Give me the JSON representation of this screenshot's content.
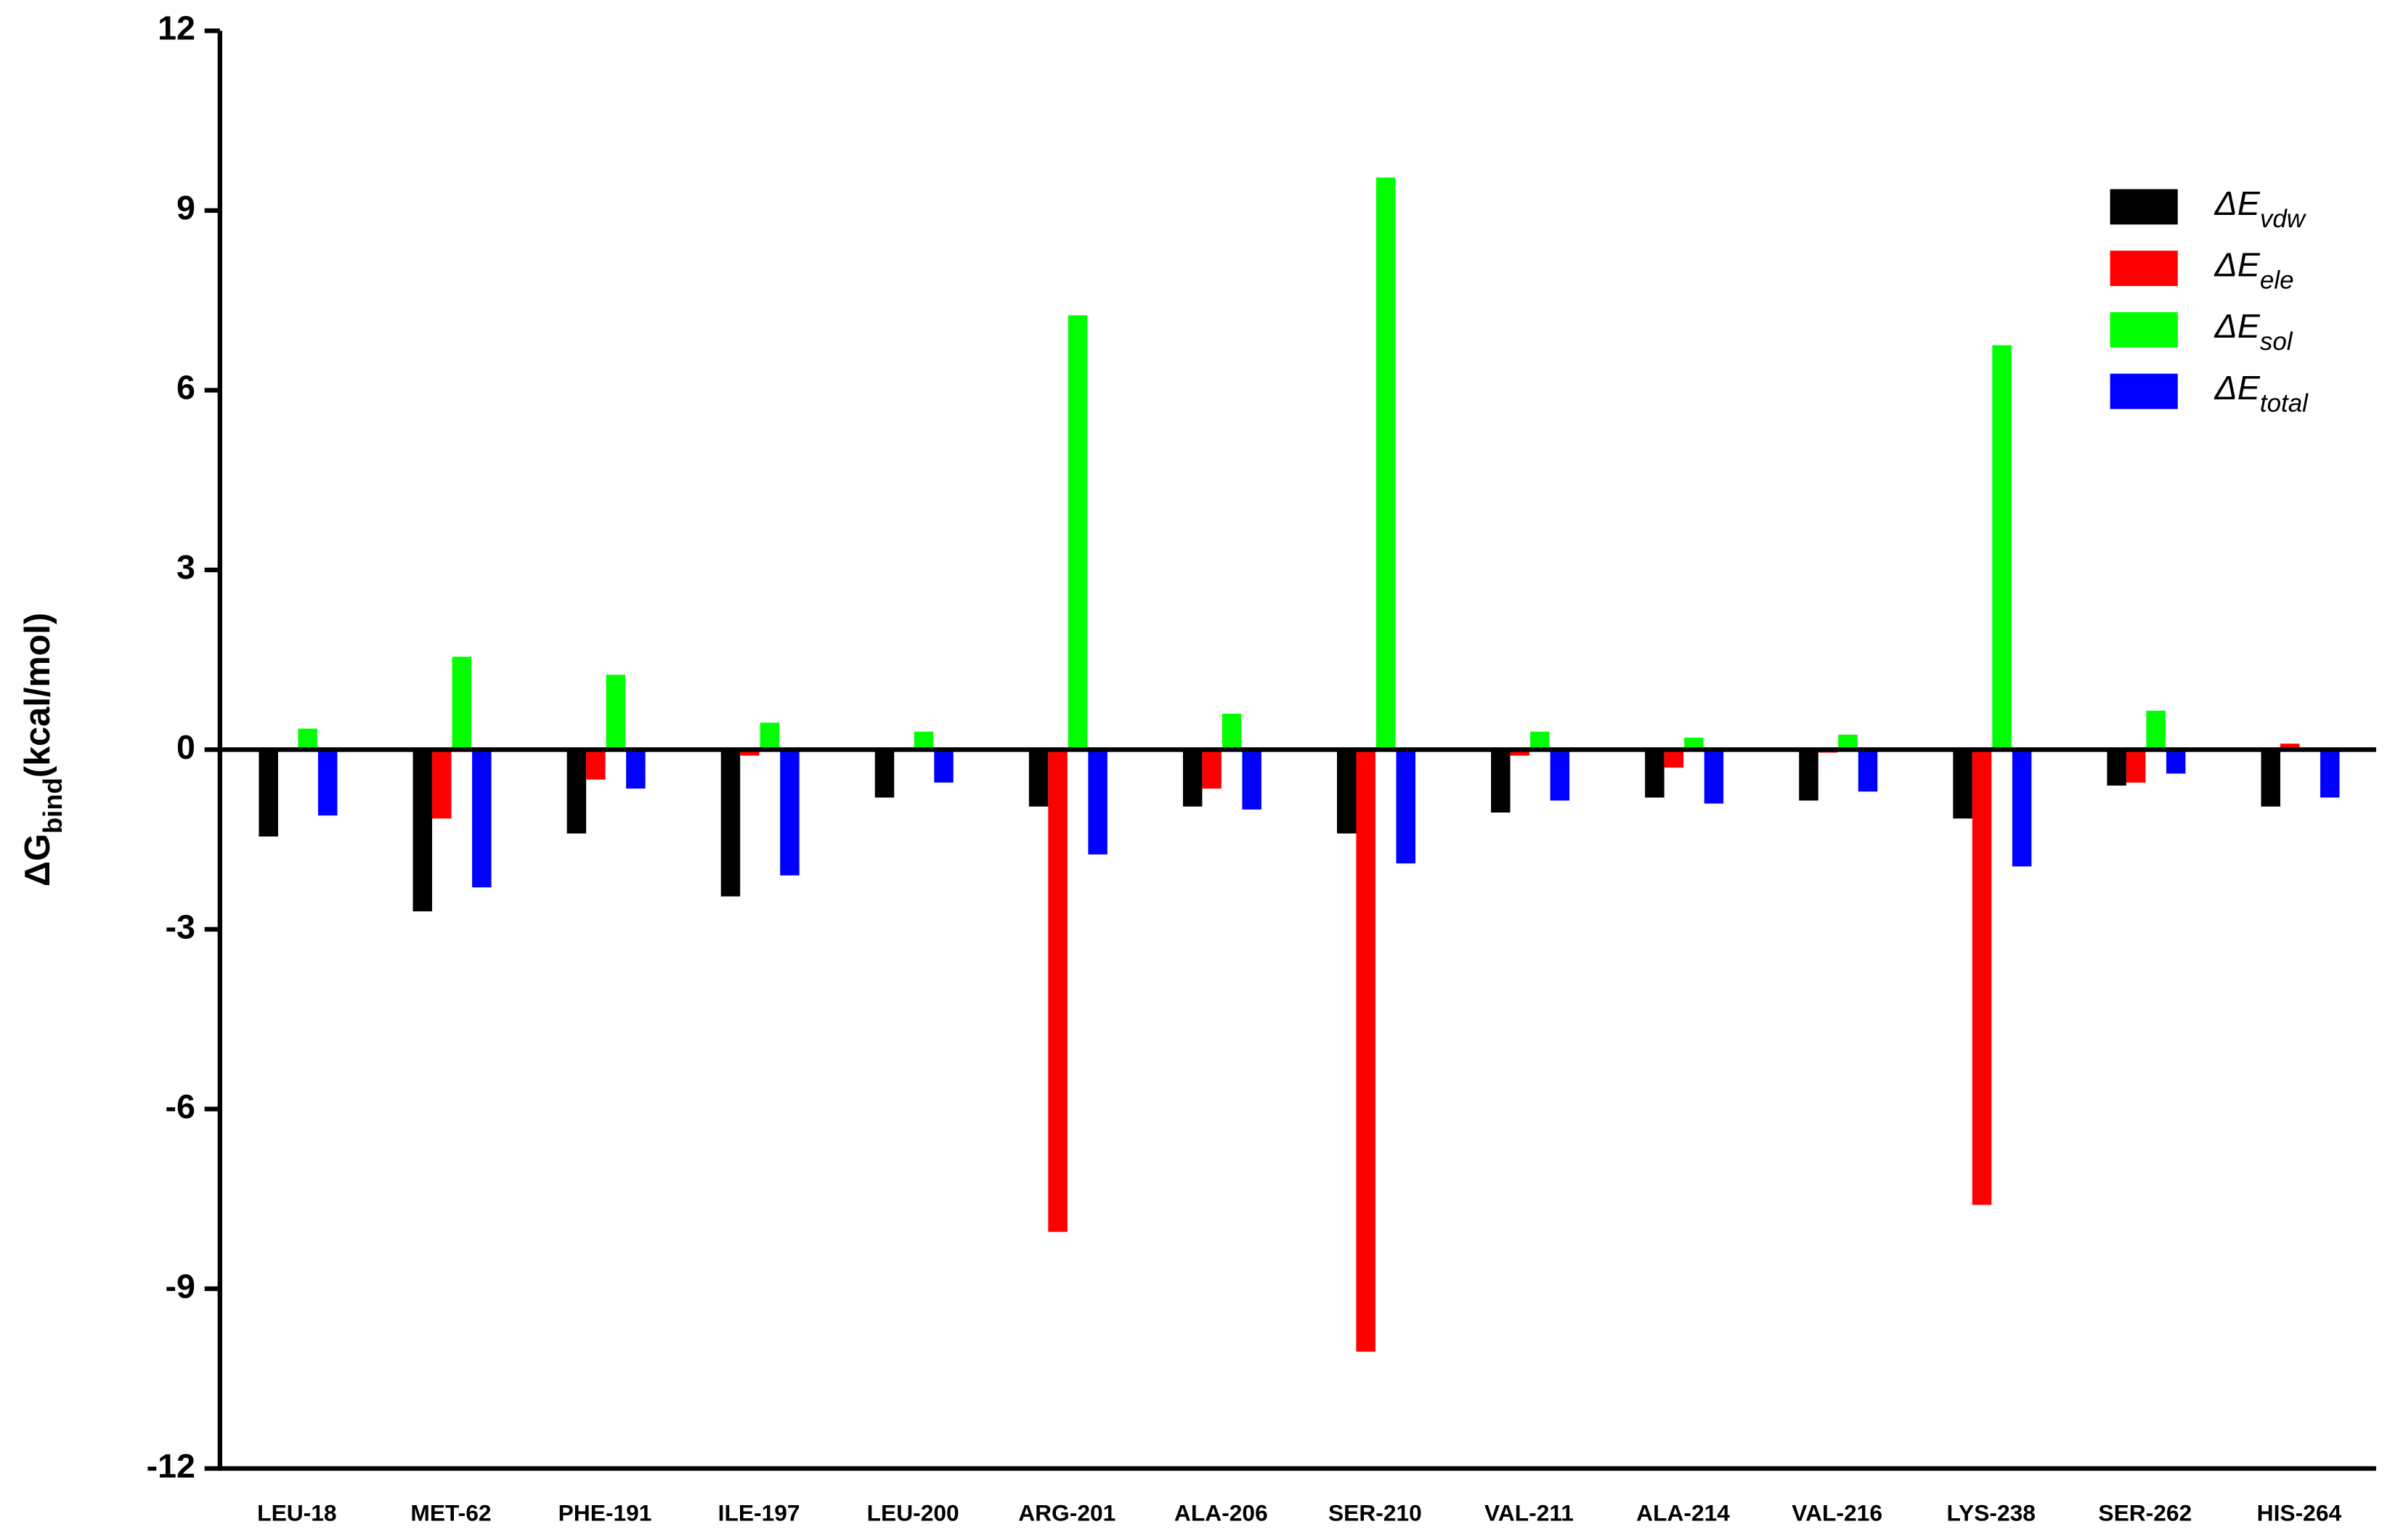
{
  "chart_data": {
    "type": "bar",
    "y_label": "ΔGbind(kcal/mol)",
    "categories": [
      "LEU-18",
      "MET-62",
      "PHE-191",
      "ILE-197",
      "LEU-200",
      "ARG-201",
      "ALA-206",
      "SER-210",
      "VAL-211",
      "ALA-214",
      "VAL-216",
      "LYS-238",
      "SER-262",
      "HIS-264"
    ],
    "series": [
      {
        "name": "ΔEvdw",
        "color": "#000000",
        "values": [
          -1.45,
          -2.7,
          -1.4,
          -2.45,
          -0.8,
          -0.95,
          -0.95,
          -1.4,
          -1.05,
          -0.8,
          -0.85,
          -1.15,
          -0.6,
          -0.95
        ]
      },
      {
        "name": "ΔEele",
        "color": "#ff0000",
        "values": [
          0,
          -1.15,
          -0.5,
          -0.1,
          0,
          -8.05,
          -0.65,
          -10.05,
          -0.1,
          -0.3,
          -0.05,
          -7.6,
          -0.55,
          0.1
        ]
      },
      {
        "name": "ΔEsol",
        "color": "#00ff00",
        "values": [
          0.35,
          1.55,
          1.25,
          0.45,
          0.3,
          7.25,
          0.6,
          9.55,
          0.3,
          0.2,
          0.25,
          6.75,
          0.65,
          0
        ]
      },
      {
        "name": "ΔEtotal",
        "color": "#0000ff",
        "values": [
          -1.1,
          -2.3,
          -0.65,
          -2.1,
          -0.55,
          -1.75,
          -1.0,
          -1.9,
          -0.85,
          -0.9,
          -0.7,
          -1.95,
          -0.4,
          -0.8
        ]
      }
    ],
    "ylim": [
      -12,
      12
    ],
    "yticks": [
      -12,
      -9,
      -6,
      -3,
      0,
      3,
      6,
      9,
      12
    ],
    "legend": "upper right"
  }
}
